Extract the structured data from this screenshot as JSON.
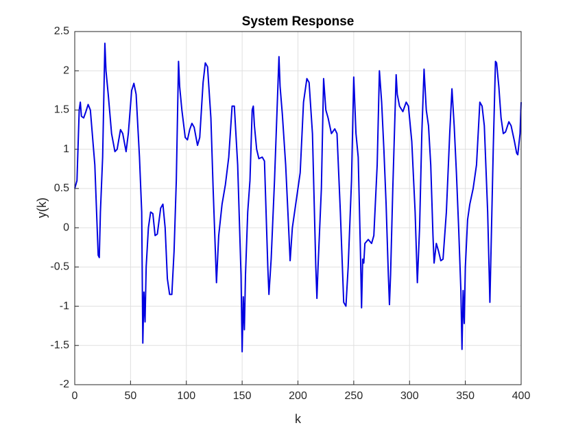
{
  "chart_data": {
    "type": "line",
    "title": "System Response",
    "xlabel": "k",
    "ylabel": "y(k)",
    "x": [
      0,
      2,
      4,
      5,
      6,
      8,
      10,
      12,
      14,
      18,
      21,
      22,
      23,
      25,
      27,
      28,
      30,
      33,
      36,
      38,
      41,
      43,
      46,
      48,
      51,
      53,
      55,
      58,
      60,
      61,
      62,
      63,
      64,
      66,
      68,
      70,
      72,
      74,
      77,
      79,
      81,
      83,
      85,
      87,
      89,
      91,
      93,
      94,
      96,
      99,
      101,
      103,
      105,
      107,
      110,
      112,
      115,
      117,
      119,
      122,
      124,
      127,
      129,
      132,
      135,
      138,
      141,
      143,
      146,
      149,
      150,
      151,
      152,
      153,
      155,
      157,
      159,
      160,
      161,
      163,
      165,
      168,
      170,
      173,
      174,
      176,
      179,
      183,
      184,
      186,
      189,
      191,
      193,
      195,
      198,
      202,
      205,
      208,
      210,
      213,
      216,
      217,
      218,
      221,
      223,
      225,
      227,
      230,
      233,
      235,
      238,
      241,
      243,
      245,
      248,
      250,
      252,
      254,
      256,
      257,
      258,
      259,
      260,
      263,
      266,
      268,
      271,
      273,
      275,
      277,
      279,
      281,
      282,
      283,
      285,
      288,
      289,
      291,
      294,
      297,
      299,
      302,
      305,
      307,
      309,
      311,
      313,
      315,
      317,
      319,
      321,
      322,
      324,
      326,
      328,
      330,
      333,
      336,
      338,
      340,
      342,
      344,
      346,
      347,
      348,
      349,
      350,
      352,
      354,
      357,
      360,
      363,
      365,
      367,
      370,
      372,
      373,
      375,
      377,
      378,
      380,
      382,
      384,
      386,
      389,
      391,
      394,
      396,
      397,
      399,
      400
    ],
    "values": [
      0.5,
      0.6,
      1.5,
      1.6,
      1.42,
      1.4,
      1.48,
      1.57,
      1.5,
      0.8,
      -0.35,
      -0.38,
      0.2,
      0.9,
      2.35,
      2.0,
      1.7,
      1.2,
      0.97,
      1.0,
      1.25,
      1.2,
      0.97,
      1.2,
      1.75,
      1.84,
      1.7,
      0.9,
      0.2,
      -1.47,
      -0.82,
      -1.2,
      -0.5,
      0.0,
      0.2,
      0.18,
      -0.1,
      -0.08,
      0.25,
      0.3,
      0.0,
      -0.65,
      -0.85,
      -0.85,
      -0.3,
      0.6,
      2.12,
      1.8,
      1.5,
      1.15,
      1.12,
      1.25,
      1.33,
      1.28,
      1.05,
      1.15,
      1.85,
      2.1,
      2.05,
      1.4,
      0.5,
      -0.7,
      -0.1,
      0.3,
      0.55,
      0.9,
      1.55,
      1.55,
      0.8,
      -0.6,
      -1.58,
      -0.88,
      -1.3,
      -0.6,
      0.2,
      0.6,
      1.5,
      1.55,
      1.3,
      1.0,
      0.88,
      0.9,
      0.85,
      -0.5,
      -0.85,
      -0.4,
      0.6,
      2.18,
      1.8,
      1.45,
      0.8,
      0.2,
      -0.42,
      0.0,
      0.3,
      0.7,
      1.6,
      1.9,
      1.85,
      1.2,
      -0.5,
      -0.9,
      -0.5,
      0.5,
      1.9,
      1.5,
      1.4,
      1.2,
      1.26,
      1.2,
      0.2,
      -0.95,
      -1.0,
      -0.5,
      0.6,
      1.92,
      1.2,
      0.9,
      -0.3,
      -1.02,
      -0.4,
      -0.45,
      -0.2,
      -0.15,
      -0.2,
      -0.1,
      0.8,
      2.0,
      1.6,
      1.0,
      0.3,
      -0.6,
      -0.98,
      -0.6,
      0.5,
      1.95,
      1.7,
      1.55,
      1.48,
      1.6,
      1.55,
      1.1,
      0.2,
      -0.7,
      0.0,
      1.2,
      2.02,
      1.5,
      1.3,
      0.8,
      -0.1,
      -0.45,
      -0.2,
      -0.3,
      -0.42,
      -0.4,
      0.2,
      1.2,
      1.77,
      1.3,
      0.7,
      0.0,
      -0.8,
      -1.55,
      -0.8,
      -1.22,
      -0.5,
      0.1,
      0.3,
      0.5,
      0.8,
      1.6,
      1.55,
      1.3,
      0.2,
      -0.95,
      -0.3,
      1.0,
      2.12,
      2.1,
      1.8,
      1.4,
      1.2,
      1.22,
      1.35,
      1.3,
      1.1,
      0.95,
      0.93,
      1.2,
      1.6
    ],
    "color": "#0000e0",
    "xlim": [
      0,
      400
    ],
    "xticks": [
      0,
      50,
      100,
      150,
      200,
      250,
      300,
      350,
      400
    ],
    "ylim": [
      -2,
      2.5
    ],
    "yticks": [
      -2,
      -1.5,
      -1,
      -0.5,
      0,
      0.5,
      1,
      1.5,
      2,
      2.5
    ],
    "grid": true
  }
}
